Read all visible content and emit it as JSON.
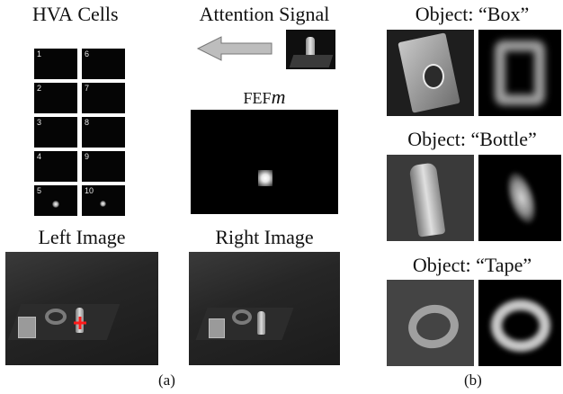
{
  "panel_a": {
    "hva_title": "HVA",
    "hva_title_suffix": " Cells",
    "attention_title": "Attention Signal",
    "fef_title_prefix": "FEF",
    "fef_title_suffix": "m",
    "left_title": "Left Image",
    "right_title": "Right Image",
    "caption": "(a)",
    "cells": [
      "1",
      "2",
      "3",
      "4",
      "5",
      "6",
      "7",
      "8",
      "9",
      "10"
    ]
  },
  "panel_b": {
    "objects": [
      {
        "title": "Object: “Box”"
      },
      {
        "title": "Object: “Bottle”"
      },
      {
        "title": "Object: “Tape”"
      }
    ],
    "caption": "(b)"
  }
}
